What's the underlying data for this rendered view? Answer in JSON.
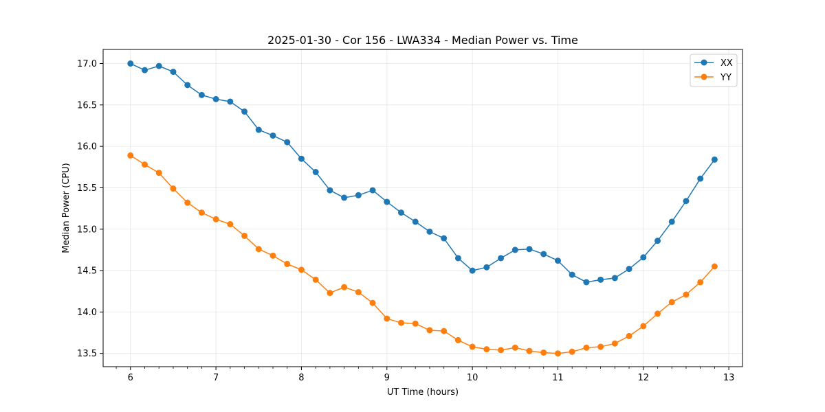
{
  "chart_data": {
    "type": "line",
    "title": "2025-01-30 - Cor 156 - LWA334 - Median Power vs. Time",
    "xlabel": "UT Time (hours)",
    "ylabel": "Median Power (CPU)",
    "xlim": [
      5.68,
      13.16
    ],
    "ylim": [
      13.34,
      17.17
    ],
    "xticks": [
      6,
      7,
      8,
      9,
      10,
      11,
      12,
      13
    ],
    "yticks": [
      13.5,
      14.0,
      14.5,
      15.0,
      15.5,
      16.0,
      16.5,
      17.0
    ],
    "ytick_labels": [
      "13.5",
      "14.0",
      "14.5",
      "15.0",
      "15.5",
      "16.0",
      "16.5",
      "17.0"
    ],
    "grid": true,
    "legend_position": "top-right",
    "x": [
      6.0,
      6.1667,
      6.3333,
      6.5,
      6.6667,
      6.8333,
      7.0,
      7.1667,
      7.3333,
      7.5,
      7.6667,
      7.8333,
      8.0,
      8.1667,
      8.3333,
      8.5,
      8.6667,
      8.8333,
      9.0,
      9.1667,
      9.3333,
      9.5,
      9.6667,
      9.8333,
      10.0,
      10.1667,
      10.3333,
      10.5,
      10.6667,
      10.8333,
      11.0,
      11.1667,
      11.3333,
      11.5,
      11.6667,
      11.8333,
      12.0,
      12.1667,
      12.3333,
      12.5,
      12.6667,
      12.8333
    ],
    "series": [
      {
        "name": "XX",
        "color": "#1f77b4",
        "values": [
          17.0,
          16.92,
          16.97,
          16.9,
          16.74,
          16.62,
          16.57,
          16.54,
          16.42,
          16.2,
          16.13,
          16.05,
          15.85,
          15.69,
          15.47,
          15.38,
          15.41,
          15.47,
          15.33,
          15.2,
          15.09,
          14.97,
          14.89,
          14.65,
          14.5,
          14.54,
          14.65,
          14.75,
          14.76,
          14.7,
          14.62,
          14.45,
          14.36,
          14.39,
          14.41,
          14.52,
          14.66,
          14.86,
          15.09,
          15.34,
          15.61,
          15.84
        ]
      },
      {
        "name": "YY",
        "color": "#ff7f0e",
        "values": [
          15.89,
          15.78,
          15.68,
          15.49,
          15.32,
          15.2,
          15.12,
          15.06,
          14.92,
          14.76,
          14.68,
          14.58,
          14.51,
          14.39,
          14.23,
          14.3,
          14.24,
          14.11,
          13.92,
          13.87,
          13.86,
          13.78,
          13.77,
          13.66,
          13.58,
          13.55,
          13.54,
          13.57,
          13.53,
          13.51,
          13.5,
          13.52,
          13.57,
          13.58,
          13.62,
          13.71,
          13.83,
          13.98,
          14.12,
          14.21,
          14.36,
          14.55
        ]
      }
    ]
  }
}
